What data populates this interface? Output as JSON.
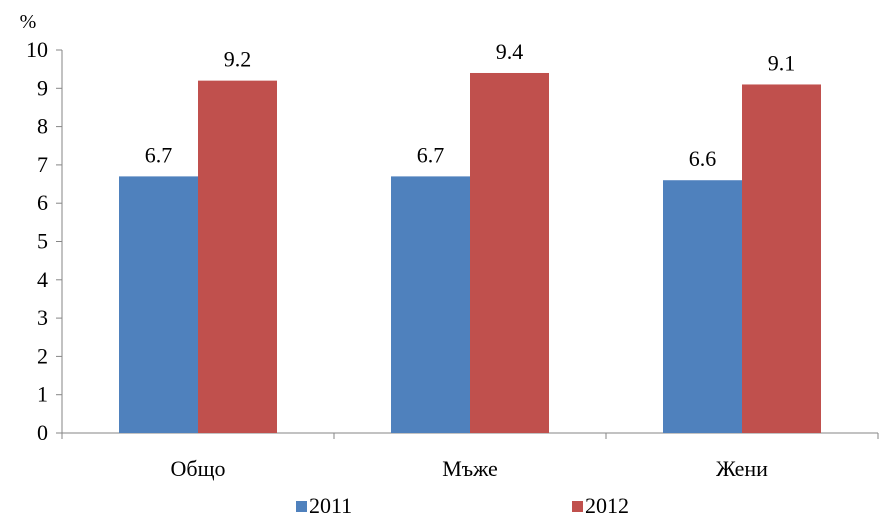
{
  "chart_data": {
    "type": "bar",
    "unit_label": "%",
    "categories": [
      "Общо",
      "Мъже",
      "Жени"
    ],
    "series": [
      {
        "name": "2011",
        "values": [
          6.7,
          6.7,
          6.6
        ],
        "color": "#4F81BD"
      },
      {
        "name": "2012",
        "values": [
          9.2,
          9.4,
          9.1
        ],
        "color": "#C0504D"
      }
    ],
    "ylim": [
      0,
      10
    ],
    "yticks": [
      "0",
      "1",
      "2",
      "3",
      "4",
      "5",
      "6",
      "7",
      "8",
      "9",
      "10"
    ],
    "data_labels": [
      [
        "6.7",
        "6.7",
        "6.6"
      ],
      [
        "9.2",
        "9.4",
        "9.1"
      ]
    ],
    "grid": false,
    "legend_position": "bottom"
  }
}
